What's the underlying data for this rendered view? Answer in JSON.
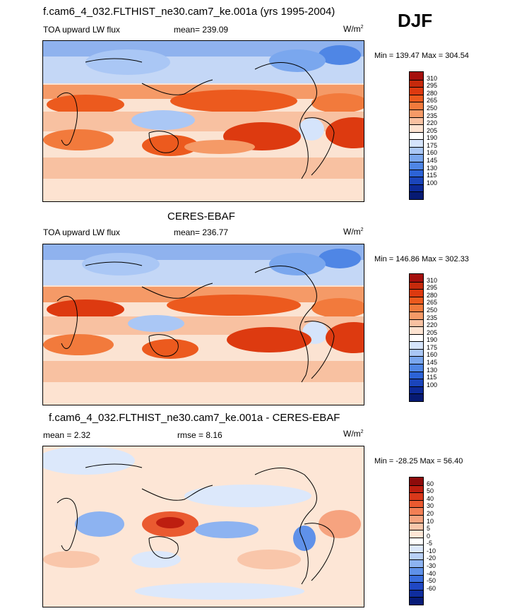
{
  "season": "DJF",
  "panels": [
    {
      "title": "f.cam6_4_032.FLTHIST_ne30.cam7_ke.001a (yrs 1995-2004)",
      "left_label": "TOA upward LW flux",
      "center_label": "mean= 239.09",
      "units": "W/m",
      "units_sup": "2",
      "minmax": "Min = 139.47 Max = 304.54",
      "colorbar": {
        "labels": [
          "310",
          "295",
          "280",
          "265",
          "250",
          "235",
          "220",
          "205",
          "190",
          "175",
          "160",
          "145",
          "130",
          "115",
          "100"
        ],
        "colors": [
          "#a50f0d",
          "#c62a0c",
          "#dd3a10",
          "#ec5a1e",
          "#f27a3c",
          "#f59a67",
          "#f8c1a1",
          "#fde3d1",
          "#ffffff",
          "#d5e4fb",
          "#aac7f5",
          "#7aa7ee",
          "#4f86e5",
          "#2d63d6",
          "#1b45bb",
          "#0d2a98",
          "#071a73"
        ]
      }
    },
    {
      "title": "CERES-EBAF",
      "left_label": "TOA upward LW flux",
      "center_label": "mean= 236.77",
      "units": "W/m",
      "units_sup": "2",
      "minmax": "Min = 146.86 Max = 302.33",
      "colorbar": {
        "labels": [
          "310",
          "295",
          "280",
          "265",
          "250",
          "235",
          "220",
          "205",
          "190",
          "175",
          "160",
          "145",
          "130",
          "115",
          "100"
        ],
        "colors": [
          "#a50f0d",
          "#c62a0c",
          "#dd3a10",
          "#ec5a1e",
          "#f27a3c",
          "#f59a67",
          "#f8c1a1",
          "#fde3d1",
          "#ffffff",
          "#d5e4fb",
          "#aac7f5",
          "#7aa7ee",
          "#4f86e5",
          "#2d63d6",
          "#1b45bb",
          "#0d2a98",
          "#071a73"
        ]
      }
    },
    {
      "title": "f.cam6_4_032.FLTHIST_ne30.cam7_ke.001a - CERES-EBAF",
      "left_label": "mean =   2.32",
      "center_label": "rmse =   8.16",
      "units": "W/m",
      "units_sup": "2",
      "minmax": "Min = -28.25 Max =  56.40",
      "colorbar": {
        "labels": [
          "60",
          "50",
          "40",
          "30",
          "20",
          "10",
          "5",
          "0",
          "-5",
          "-10",
          "-20",
          "-30",
          "-40",
          "-50",
          "-60"
        ],
        "colors": [
          "#8e0b0b",
          "#bd1e10",
          "#d9381a",
          "#ea5a30",
          "#f27f55",
          "#f6a37f",
          "#f9c6aa",
          "#fde6d6",
          "#ffffff",
          "#dce8fb",
          "#b8d0f7",
          "#8db3f1",
          "#5f91e9",
          "#3a6edd",
          "#2048c4",
          "#0f2d9e",
          "#071b78"
        ]
      }
    }
  ]
}
